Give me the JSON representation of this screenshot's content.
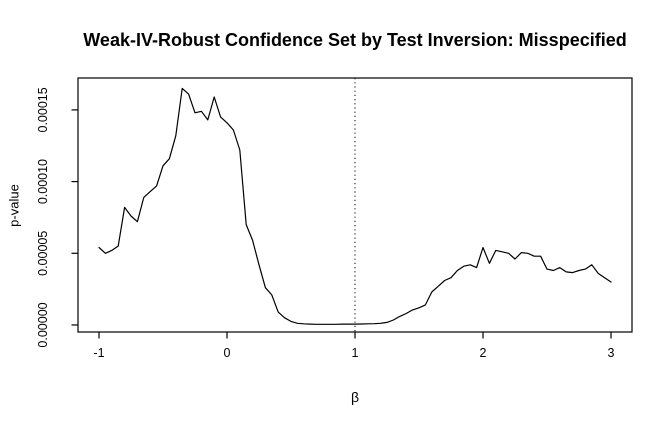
{
  "chart_data": {
    "type": "line",
    "title": "Weak-IV-Robust Confidence Set by Test Inversion: Misspecified",
    "xlabel": "β",
    "ylabel": "p-value",
    "x": [
      -1.0,
      -0.95,
      -0.9,
      -0.85,
      -0.8,
      -0.75,
      -0.7,
      -0.65,
      -0.6,
      -0.55,
      -0.5,
      -0.45,
      -0.4,
      -0.35,
      -0.3,
      -0.25,
      -0.2,
      -0.15,
      -0.1,
      -0.05,
      0.0,
      0.05,
      0.1,
      0.15,
      0.2,
      0.25,
      0.3,
      0.35,
      0.4,
      0.45,
      0.5,
      0.55,
      0.6,
      0.65,
      0.7,
      0.75,
      0.8,
      0.85,
      0.9,
      0.95,
      1.0,
      1.05,
      1.1,
      1.15,
      1.2,
      1.25,
      1.3,
      1.35,
      1.4,
      1.45,
      1.5,
      1.55,
      1.6,
      1.65,
      1.7,
      1.75,
      1.8,
      1.85,
      1.9,
      1.95,
      2.0,
      2.05,
      2.1,
      2.15,
      2.2,
      2.25,
      2.3,
      2.35,
      2.4,
      2.45,
      2.5,
      2.55,
      2.6,
      2.65,
      2.7,
      2.75,
      2.8,
      2.85,
      2.9,
      2.95,
      3.0
    ],
    "values": [
      5.4e-05,
      5e-05,
      5.2e-05,
      5.5e-05,
      8.2e-05,
      7.6e-05,
      7.2e-05,
      8.9e-05,
      9.3e-05,
      9.7e-05,
      0.000111,
      0.000116,
      0.000132,
      0.000165,
      0.000161,
      0.000148,
      0.000149,
      0.000143,
      0.000159,
      0.000145,
      0.000141,
      0.000136,
      0.000122,
      7e-05,
      5.9e-05,
      4.2e-05,
      2.6e-05,
      2.1e-05,
      9e-06,
      5e-06,
      2.5e-06,
      1.2e-06,
      8e-07,
      6e-07,
      5e-07,
      5e-07,
      5e-07,
      5e-07,
      6e-07,
      6e-07,
      6e-07,
      7e-07,
      8e-07,
      9e-07,
      1.2e-06,
      1.8e-06,
      3.5e-06,
      6e-06,
      8e-06,
      1.05e-05,
      1.2e-05,
      1.4e-05,
      2.3e-05,
      2.7e-05,
      3.1e-05,
      3.3e-05,
      3.8e-05,
      4.1e-05,
      4.2e-05,
      4e-05,
      5.4e-05,
      4.3e-05,
      5.2e-05,
      5.1e-05,
      5e-05,
      4.6e-05,
      5.05e-05,
      5e-05,
      4.8e-05,
      4.8e-05,
      3.9e-05,
      3.8e-05,
      4e-05,
      3.7e-05,
      3.65e-05,
      3.8e-05,
      3.9e-05,
      4.2e-05,
      3.6e-05,
      3.3e-05,
      3e-05
    ],
    "xticks": [
      -1,
      0,
      1,
      2,
      3
    ],
    "xtick_labels": [
      "-1",
      "0",
      "1",
      "2",
      "3"
    ],
    "yticks": [
      0,
      5e-05,
      0.0001,
      0.00015
    ],
    "ytick_labels": [
      "0.00000",
      "0.00005",
      "0.00010",
      "0.00015"
    ],
    "xlim": [
      -1.164,
      3.164
    ],
    "ylim": [
      -4.9e-06,
      0.00017225
    ],
    "vline": {
      "x": 1,
      "style": "dotted"
    },
    "line_color": "#000000",
    "axis_color": "#000000",
    "background": "#ffffff",
    "grid": false,
    "legend_position": "none"
  }
}
